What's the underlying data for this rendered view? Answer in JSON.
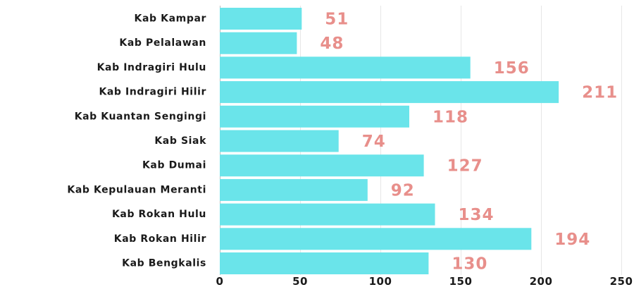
{
  "chart_data": {
    "type": "bar",
    "orientation": "horizontal",
    "title": "",
    "xlabel": "",
    "ylabel": "",
    "categories": [
      "Kab Kampar",
      "Kab Pelalawan",
      "Kab Indragiri Hulu",
      "Kab Indragiri Hilir",
      "Kab Kuantan Sengingi",
      "Kab Siak",
      "Kab Dumai",
      "Kab Kepulauan Meranti",
      "Kab Rokan Hulu",
      "Kab Rokan Hilir",
      "Kab Bengkalis"
    ],
    "values": [
      51,
      48,
      156,
      211,
      118,
      74,
      127,
      92,
      134,
      194,
      130
    ],
    "xlim": [
      0,
      250
    ],
    "x_ticks": [
      0,
      50,
      100,
      150,
      200,
      250
    ],
    "grid": true,
    "legend": "none",
    "data_labels": true
  },
  "colors": {
    "bar": "#6ae4ea",
    "value_label": "#e88f8b",
    "text": "#1a1a1a",
    "grid": "#e6e6e6",
    "axis": "#bdbdbd"
  }
}
